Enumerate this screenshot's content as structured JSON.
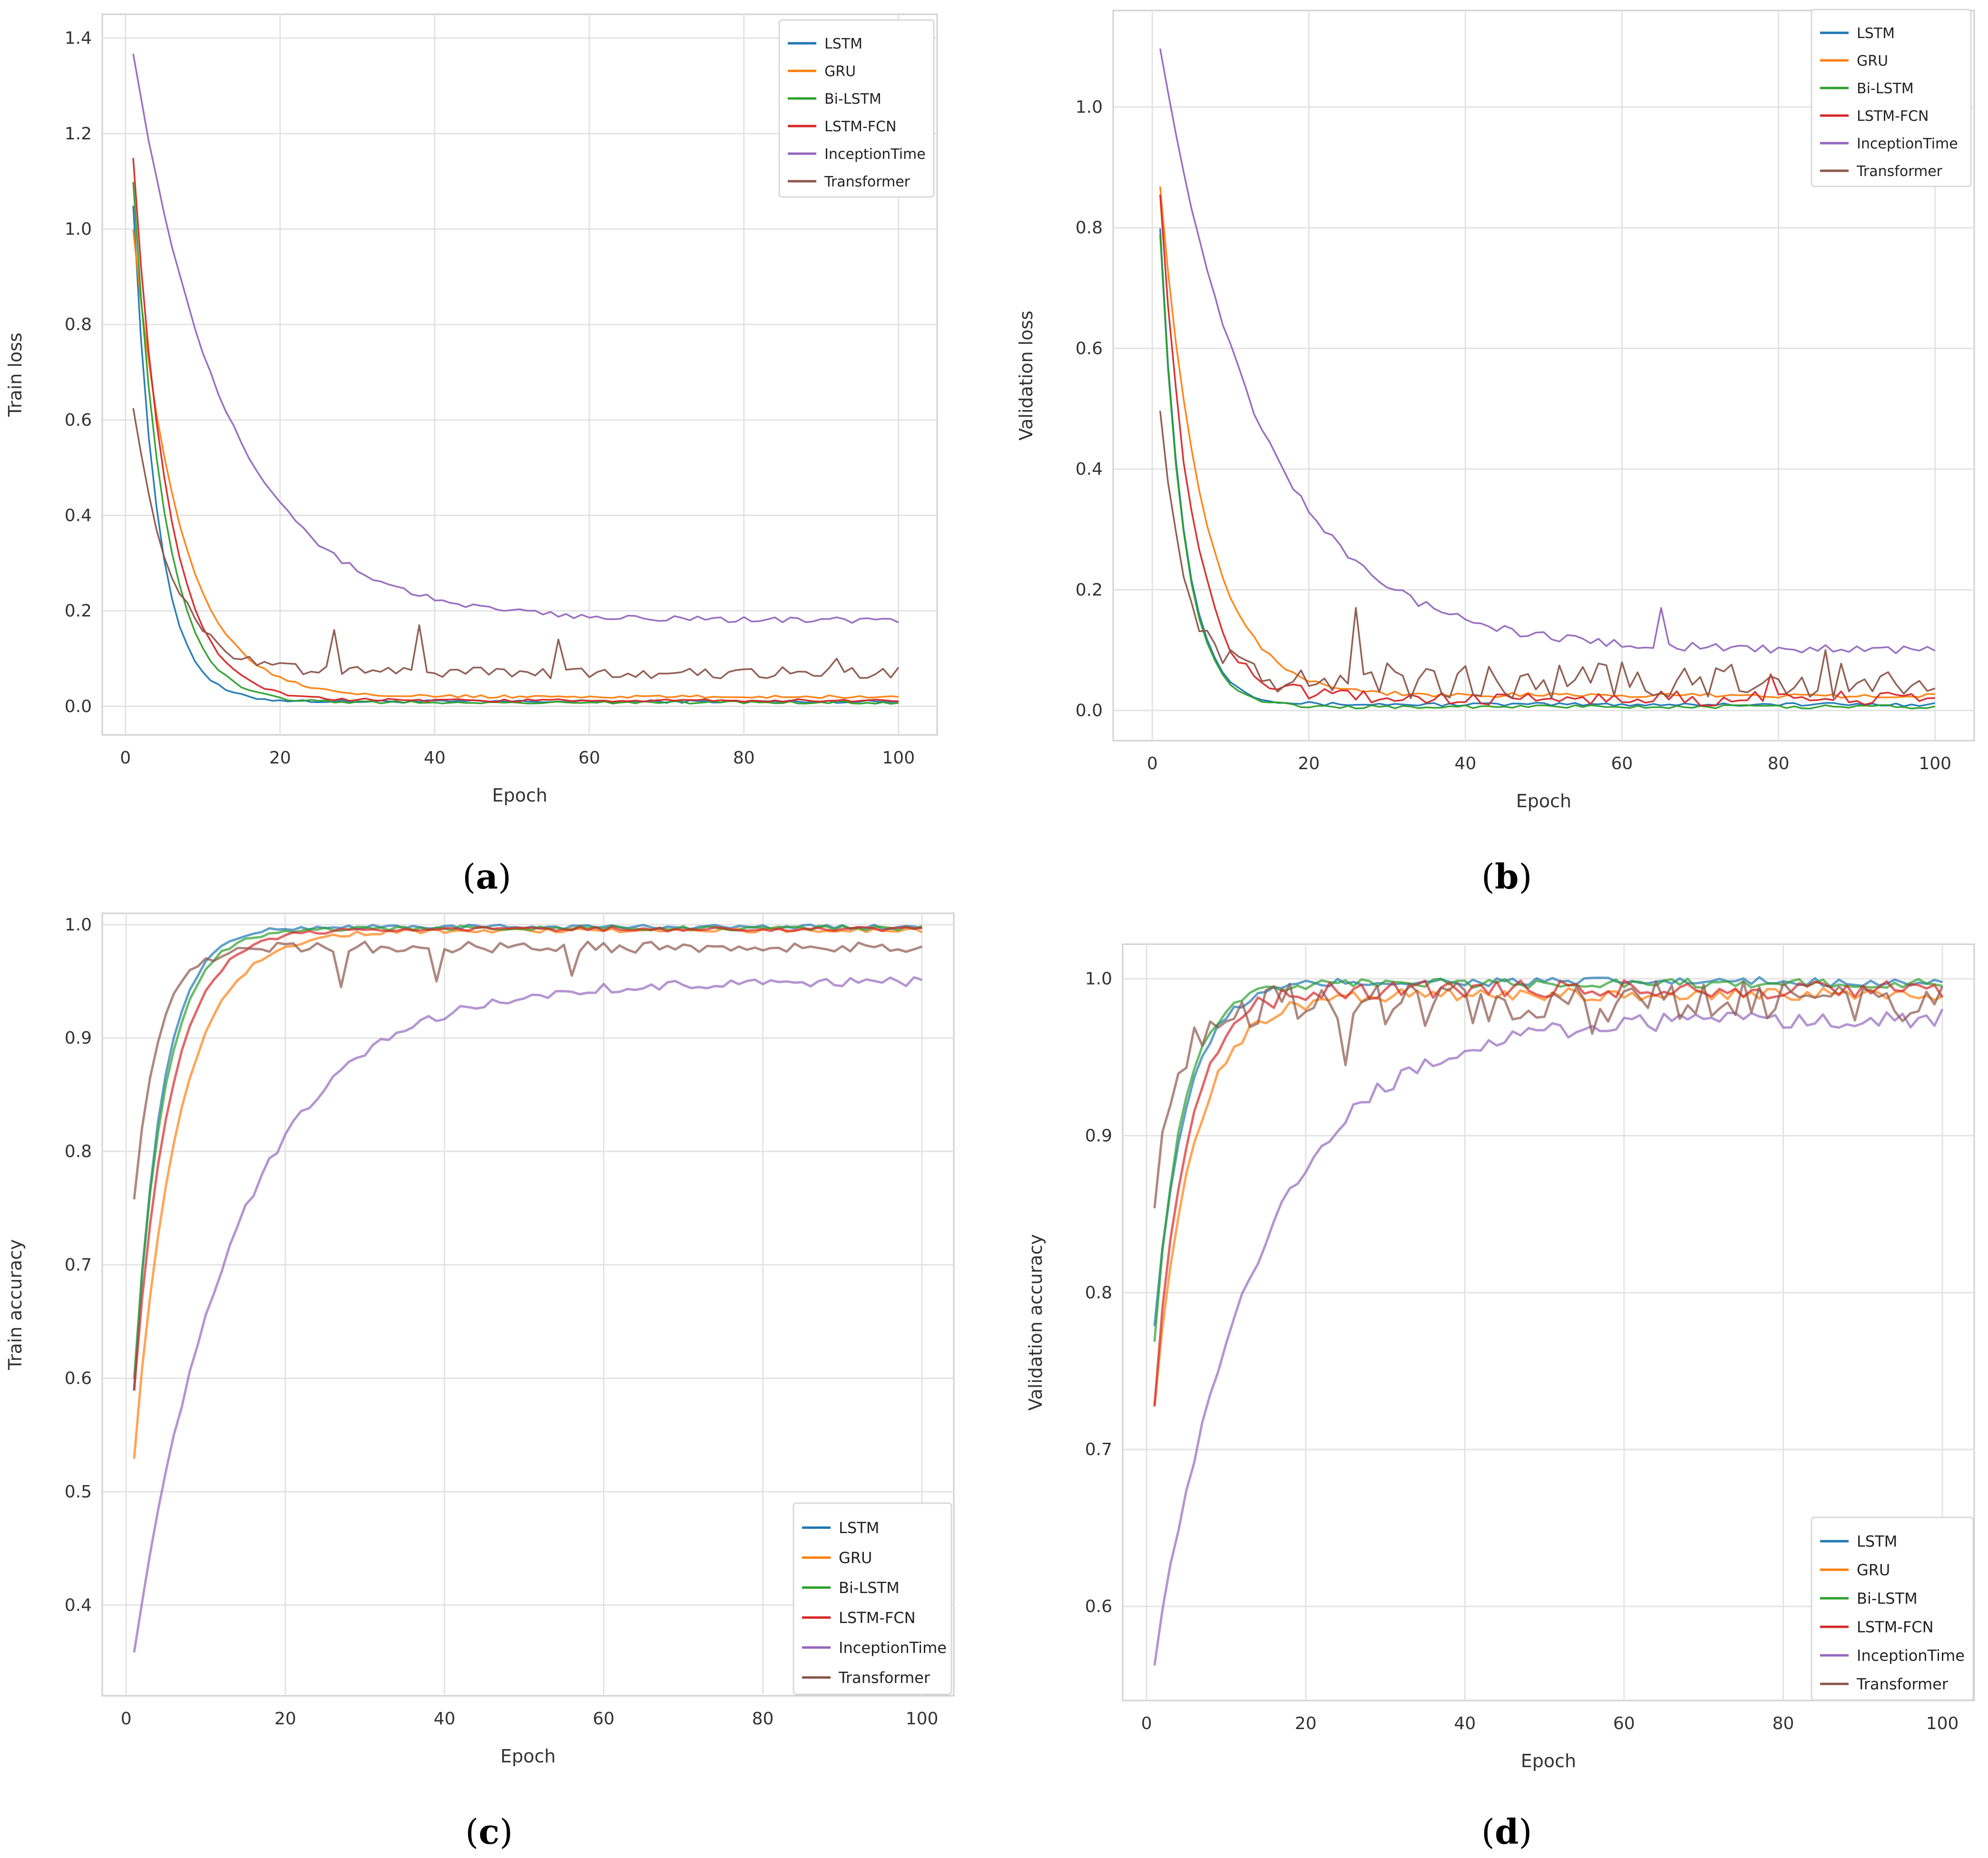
{
  "figure": {
    "captions": [
      "(a)",
      "(b)",
      "(c)",
      "(d)"
    ],
    "caption_letters": [
      "a",
      "b",
      "c",
      "d"
    ]
  },
  "colors": {
    "LSTM": "#1f77b4",
    "GRU": "#ff7f0e",
    "Bi-LSTM": "#2ca02c",
    "LSTM-FCN": "#d62728",
    "InceptionTime": "#9467bd",
    "Transformer": "#8c564b",
    "grid": "#e3e3e3",
    "axis": "#d0d0d0",
    "text": "#333333"
  },
  "chart_data": [
    {
      "id": "a",
      "type": "line",
      "title": "",
      "xlabel": "Epoch",
      "ylabel": "Train loss",
      "xlim": [
        -3,
        105
      ],
      "ylim": [
        -0.06,
        1.45
      ],
      "xticks": [
        0,
        20,
        40,
        60,
        80,
        100
      ],
      "yticks": [
        0.0,
        0.2,
        0.4,
        0.6,
        0.8,
        1.0,
        1.2,
        1.4
      ],
      "xtick_labels": [
        "0",
        "20",
        "40",
        "60",
        "80",
        "100"
      ],
      "ytick_labels": [
        "0.0",
        "0.2",
        "0.4",
        "0.6",
        "0.8",
        "1.0",
        "1.2",
        "1.4"
      ],
      "legend_position": "top-right",
      "series": [
        {
          "name": "LSTM",
          "start": 1.05,
          "end": 0.01,
          "tau": 3.2,
          "noise": 0.003,
          "spikes": []
        },
        {
          "name": "GRU",
          "start": 1.0,
          "end": 0.02,
          "tau": 6.0,
          "noise": 0.003,
          "spikes": []
        },
        {
          "name": "Bi-LSTM",
          "start": 1.1,
          "end": 0.008,
          "tau": 4.0,
          "noise": 0.003,
          "spikes": []
        },
        {
          "name": "LSTM-FCN",
          "start": 1.15,
          "end": 0.012,
          "tau": 4.5,
          "noise": 0.003,
          "spikes": []
        },
        {
          "name": "InceptionTime",
          "start": 1.37,
          "end": 0.18,
          "tau": 12.0,
          "noise": 0.006,
          "spikes": []
        },
        {
          "name": "Transformer",
          "start": 0.63,
          "end": 0.07,
          "tau": 5.0,
          "noise": 0.012,
          "spikes": [
            [
              27,
              0.16
            ],
            [
              38,
              0.17
            ],
            [
              56,
              0.14
            ],
            [
              92,
              0.1
            ]
          ]
        }
      ]
    },
    {
      "id": "b",
      "type": "line",
      "title": "",
      "xlabel": "Epoch",
      "ylabel": "Validation loss",
      "xlim": [
        -5,
        105
      ],
      "ylim": [
        -0.05,
        1.16
      ],
      "xticks": [
        0,
        20,
        40,
        60,
        80,
        100
      ],
      "yticks": [
        0.0,
        0.2,
        0.4,
        0.6,
        0.8,
        1.0
      ],
      "xtick_labels": [
        "0",
        "20",
        "40",
        "60",
        "80",
        "100"
      ],
      "ytick_labels": [
        "0.0",
        "0.2",
        "0.4",
        "0.6",
        "0.8",
        "1.0"
      ],
      "legend_position": "top-right",
      "series": [
        {
          "name": "LSTM",
          "start": 0.8,
          "end": 0.01,
          "tau": 3.0,
          "noise": 0.003,
          "spikes": []
        },
        {
          "name": "GRU",
          "start": 0.87,
          "end": 0.025,
          "tau": 5.5,
          "noise": 0.004,
          "spikes": []
        },
        {
          "name": "Bi-LSTM",
          "start": 0.79,
          "end": 0.006,
          "tau": 3.0,
          "noise": 0.003,
          "spikes": []
        },
        {
          "name": "LSTM-FCN",
          "start": 0.86,
          "end": 0.02,
          "tau": 4.0,
          "noise": 0.012,
          "spikes": [
            [
              79,
              0.06
            ]
          ]
        },
        {
          "name": "InceptionTime",
          "start": 1.1,
          "end": 0.1,
          "tau": 13.0,
          "noise": 0.007,
          "spikes": [
            [
              65,
              0.17
            ]
          ]
        },
        {
          "name": "Transformer",
          "start": 0.51,
          "end": 0.05,
          "tau": 3.0,
          "noise": 0.03,
          "spikes": [
            [
              26,
              0.17
            ],
            [
              86,
              0.1
            ]
          ]
        }
      ]
    },
    {
      "id": "c",
      "type": "line",
      "title": "",
      "xlabel": "Epoch",
      "ylabel": "Train  accuracy",
      "xlim": [
        -3,
        104
      ],
      "ylim": [
        0.32,
        1.01
      ],
      "xticks": [
        0,
        20,
        40,
        60,
        80,
        100
      ],
      "yticks": [
        0.4,
        0.5,
        0.6,
        0.7,
        0.8,
        0.9,
        1.0
      ],
      "xtick_labels": [
        "0",
        "20",
        "40",
        "60",
        "80",
        "100"
      ],
      "ytick_labels": [
        "0.4",
        "0.5",
        "0.6",
        "0.7",
        "0.8",
        "0.9",
        "1.0"
      ],
      "legend_position": "lower-right",
      "series": [
        {
          "name": "LSTM",
          "start": 0.59,
          "end": 0.998,
          "tau": 3.5,
          "noise": 0.002,
          "spikes": []
        },
        {
          "name": "GRU",
          "start": 0.53,
          "end": 0.995,
          "tau": 5.5,
          "noise": 0.002,
          "spikes": []
        },
        {
          "name": "Bi-LSTM",
          "start": 0.6,
          "end": 0.997,
          "tau": 3.8,
          "noise": 0.002,
          "spikes": []
        },
        {
          "name": "LSTM-FCN",
          "start": 0.59,
          "end": 0.996,
          "tau": 4.5,
          "noise": 0.002,
          "spikes": []
        },
        {
          "name": "InceptionTime",
          "start": 0.36,
          "end": 0.95,
          "tau": 13.0,
          "noise": 0.004,
          "spikes": []
        },
        {
          "name": "Transformer",
          "start": 0.76,
          "end": 0.98,
          "tau": 3.0,
          "noise": 0.005,
          "spikes": [
            [
              27,
              0.945
            ],
            [
              39,
              0.95
            ],
            [
              56,
              0.955
            ]
          ]
        }
      ]
    },
    {
      "id": "d",
      "type": "line",
      "title": "",
      "xlabel": "Epoch",
      "ylabel": "Validation  accuracy",
      "xlim": [
        -3,
        104
      ],
      "ylim": [
        0.54,
        1.022
      ],
      "xticks": [
        0,
        20,
        40,
        60,
        80,
        100
      ],
      "yticks": [
        0.6,
        0.7,
        0.8,
        0.9,
        1.0
      ],
      "xtick_labels": [
        "0",
        "20",
        "40",
        "60",
        "80",
        "100"
      ],
      "ytick_labels": [
        "0.6",
        "0.7",
        "0.8",
        "0.9",
        "1.0"
      ],
      "legend_position": "lower-right",
      "series": [
        {
          "name": "LSTM",
          "start": 0.78,
          "end": 0.998,
          "tau": 4.0,
          "noise": 0.003,
          "spikes": []
        },
        {
          "name": "GRU",
          "start": 0.73,
          "end": 0.99,
          "tau": 5.0,
          "noise": 0.004,
          "spikes": []
        },
        {
          "name": "Bi-LSTM",
          "start": 0.77,
          "end": 0.997,
          "tau": 3.5,
          "noise": 0.003,
          "spikes": []
        },
        {
          "name": "LSTM-FCN",
          "start": 0.73,
          "end": 0.993,
          "tau": 4.0,
          "noise": 0.006,
          "spikes": []
        },
        {
          "name": "InceptionTime",
          "start": 0.565,
          "end": 0.975,
          "tau": 13.0,
          "noise": 0.006,
          "spikes": []
        },
        {
          "name": "Transformer",
          "start": 0.86,
          "end": 0.985,
          "tau": 3.0,
          "noise": 0.014,
          "spikes": [
            [
              25,
              0.945
            ],
            [
              35,
              0.97
            ],
            [
              56,
              0.965
            ]
          ]
        }
      ]
    }
  ]
}
